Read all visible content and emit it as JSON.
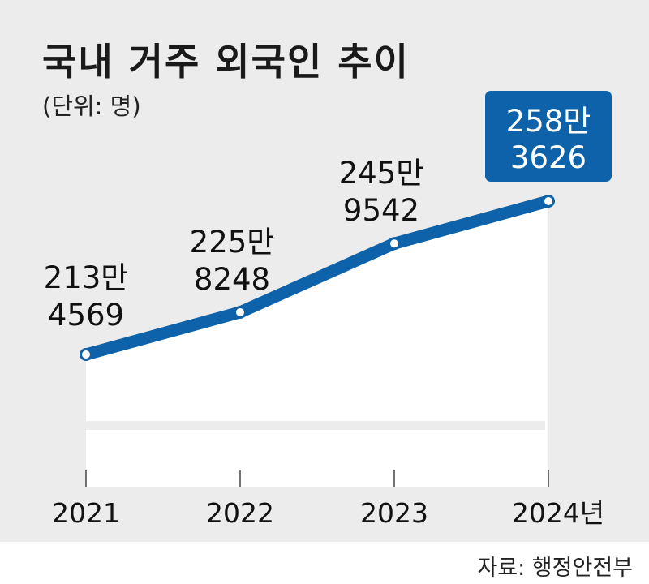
{
  "title": "국내 거주 외국인 추이",
  "unit_label": "(단위: 명)",
  "source": "자료: 행정안전부",
  "colors": {
    "line": "#0d62aa",
    "highlight_box": "#0d62aa",
    "background": "#ececec",
    "area": "#ffffff"
  },
  "chart_data": {
    "type": "area",
    "categories": [
      "2021",
      "2022",
      "2023",
      "2024년"
    ],
    "values": [
      2134569,
      2258248,
      2459542,
      2583626
    ],
    "point_labels": [
      [
        "213만",
        "4569"
      ],
      [
        "225만",
        "8248"
      ],
      [
        "245만",
        "9542"
      ],
      [
        "258만",
        "3626"
      ]
    ],
    "highlight_index": 3,
    "grid": false,
    "legend": "none"
  }
}
